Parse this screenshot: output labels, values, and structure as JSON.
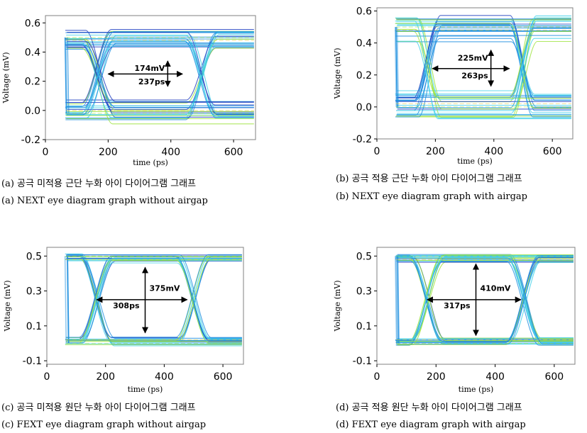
{
  "colors": {
    "trace_dark": "#1f3fbf",
    "trace_mid": "#1e8fe0",
    "trace_light": "#3fd0e8",
    "trace_hot": "#9be23a",
    "trace_warm": "#e8c838",
    "annotation": "#000000",
    "axis": "#808080"
  },
  "chart_data": [
    {
      "id": "a",
      "type": "line",
      "subtype": "eye-diagram",
      "xlabel": "time (ps)",
      "ylabel": "Voltage (mV)",
      "xlim": [
        0,
        670
      ],
      "ylim": [
        -0.2,
        0.65
      ],
      "xticks": [
        0,
        200,
        400,
        600
      ],
      "xtick_labels": [
        "0",
        "200",
        "400",
        "600"
      ],
      "yticks": [
        -0.2,
        0.0,
        0.2,
        0.4,
        0.6
      ],
      "ytick_labels": [
        "-0.2",
        "0.0",
        "0.2",
        "0.4",
        "0.6"
      ],
      "eye": {
        "cross1": 170,
        "cross2": 500,
        "cross_v": 0.25,
        "top": 0.5,
        "bottom": -0.02,
        "width": 95
      },
      "annotations": [
        {
          "text": "174mV",
          "kind": "vertical",
          "x": 390,
          "y0": 0.165,
          "y1": 0.339
        },
        {
          "text": "237ps",
          "kind": "horizontal",
          "y": 0.25,
          "x0": 200,
          "x1": 437
        }
      ],
      "caption_ko": "(a) 공극 미적용 근단 누화 아이 다이어그램 그래프",
      "caption_en": "(a) NEXT eye diagram graph without airgap"
    },
    {
      "id": "b",
      "type": "line",
      "subtype": "eye-diagram",
      "xlabel": "time (ps)",
      "ylabel": "Voltage (mV)",
      "xlim": [
        0,
        670
      ],
      "ylim": [
        -0.2,
        0.62
      ],
      "xticks": [
        0,
        200,
        400,
        600
      ],
      "xtick_labels": [
        "0",
        "200",
        "400",
        "600"
      ],
      "yticks": [
        -0.2,
        0.0,
        0.2,
        0.4,
        0.6
      ],
      "ytick_labels": [
        "-0.2",
        "0.0",
        "0.2",
        "0.4",
        "0.6"
      ],
      "eye": {
        "cross1": 175,
        "cross2": 500,
        "cross_v": 0.24,
        "top": 0.5,
        "bottom": 0.0,
        "width": 80
      },
      "annotations": [
        {
          "text": "225mV",
          "kind": "vertical",
          "x": 390,
          "y0": 0.13,
          "y1": 0.355
        },
        {
          "text": "263ps",
          "kind": "horizontal",
          "y": 0.24,
          "x0": 190,
          "x1": 453
        }
      ],
      "caption_ko": "(b) 공극 적용 근단 누화 아이 다이어그램 그래프",
      "caption_en": "(b) NEXT eye diagram graph with airgap"
    },
    {
      "id": "c",
      "type": "line",
      "subtype": "eye-diagram",
      "xlabel": "time (ps)",
      "ylabel": "Voltage (mV)",
      "xlim": [
        0,
        670
      ],
      "ylim": [
        -0.12,
        0.55
      ],
      "xticks": [
        0,
        200,
        400,
        600
      ],
      "xtick_labels": [
        "0",
        "200",
        "400",
        "600"
      ],
      "yticks": [
        -0.1,
        0.1,
        0.3,
        0.5
      ],
      "ytick_labels": [
        "-0.1",
        "0.1",
        "0.3",
        "0.5"
      ],
      "eye": {
        "cross1": 170,
        "cross2": 500,
        "cross_v": 0.25,
        "top": 0.5,
        "bottom": 0.0,
        "width": 110
      },
      "annotations": [
        {
          "text": "375mV",
          "kind": "vertical",
          "x": 335,
          "y0": 0.06,
          "y1": 0.435
        },
        {
          "text": "308ps",
          "kind": "horizontal",
          "y": 0.25,
          "x0": 170,
          "x1": 478
        }
      ],
      "caption_ko": "(c) 공극 미적용 원단 누화 아이 다이어그램 그래프",
      "caption_en": "(c) FEXT eye diagram graph without airgap"
    },
    {
      "id": "d",
      "type": "line",
      "subtype": "eye-diagram",
      "xlabel": "time (ps)",
      "ylabel": "Voltage (mV)",
      "xlim": [
        0,
        670
      ],
      "ylim": [
        -0.12,
        0.55
      ],
      "xticks": [
        0,
        200,
        400,
        600
      ],
      "xtick_labels": [
        "0",
        "200",
        "400",
        "600"
      ],
      "yticks": [
        -0.1,
        0.1,
        0.3,
        0.5
      ],
      "ytick_labels": [
        "-0.1",
        "0.1",
        "0.3",
        "0.5"
      ],
      "eye": {
        "cross1": 170,
        "cross2": 500,
        "cross_v": 0.25,
        "top": 0.5,
        "bottom": 0.0,
        "width": 110
      },
      "annotations": [
        {
          "text": "410mV",
          "kind": "vertical",
          "x": 335,
          "y0": 0.045,
          "y1": 0.455
        },
        {
          "text": "317ps",
          "kind": "horizontal",
          "y": 0.25,
          "x0": 170,
          "x1": 487
        }
      ],
      "caption_ko": "(d) 공극 적용 원단 누화 아이 다이어그램 그래프",
      "caption_en": "(d) FEXT eye diagram graph with airgap"
    }
  ]
}
